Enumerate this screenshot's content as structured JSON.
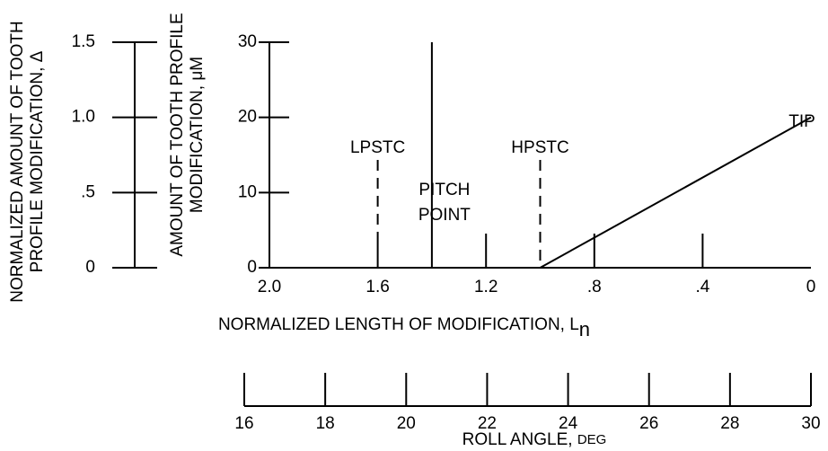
{
  "chart_data": {
    "type": "line",
    "x": [
      1.0,
      0
    ],
    "series": [
      {
        "name": "Profile modification",
        "color": "#000000",
        "values": [
          0,
          20
        ]
      }
    ],
    "xlim": [
      2.0,
      0
    ],
    "xticks": [
      {
        "value": 2.0,
        "label": "2.0"
      },
      1.6,
      1.2,
      {
        "value": 0.8,
        "label": ".8"
      },
      {
        "value": 0.4,
        "label": ".4"
      },
      0
    ],
    "xlabel": {
      "text": "NORMALIZED LENGTH OF MODIFICATION, L",
      "subscript": "n"
    },
    "ylim": [
      0,
      30
    ],
    "yticks": [
      0,
      10,
      20,
      30
    ],
    "ylabel": [
      "AMOUNT OF TOOTH PROFILE",
      "MODIFICATION, μM"
    ],
    "y2lim": [
      0,
      1.5
    ],
    "y2ticks": [
      0,
      {
        "value": 0.5,
        "label": ".5"
      },
      {
        "value": 1.0,
        "label": "1.0"
      },
      1.5
    ],
    "y2label": [
      "NORMALIZED AMOUNT OF TOOTH",
      "PROFILE MODIFICATION, Δ"
    ],
    "x2lim": [
      16,
      30
    ],
    "x2ticks": [
      16,
      18,
      20,
      22,
      24,
      26,
      28,
      30
    ],
    "x2label": {
      "text": "ROLL ANGLE, ",
      "unit": "DEG"
    },
    "annotations": [
      {
        "text": [
          "LPSTC"
        ],
        "x": 1.6,
        "style": "dashed"
      },
      {
        "text": [
          "PITCH",
          "POINT"
        ],
        "x": 1.4,
        "style": "thick"
      },
      {
        "text": [
          "HPSTC"
        ],
        "x": 1.0,
        "style": "dashed"
      },
      {
        "text": [
          "TIP"
        ],
        "x": 0
      }
    ]
  }
}
